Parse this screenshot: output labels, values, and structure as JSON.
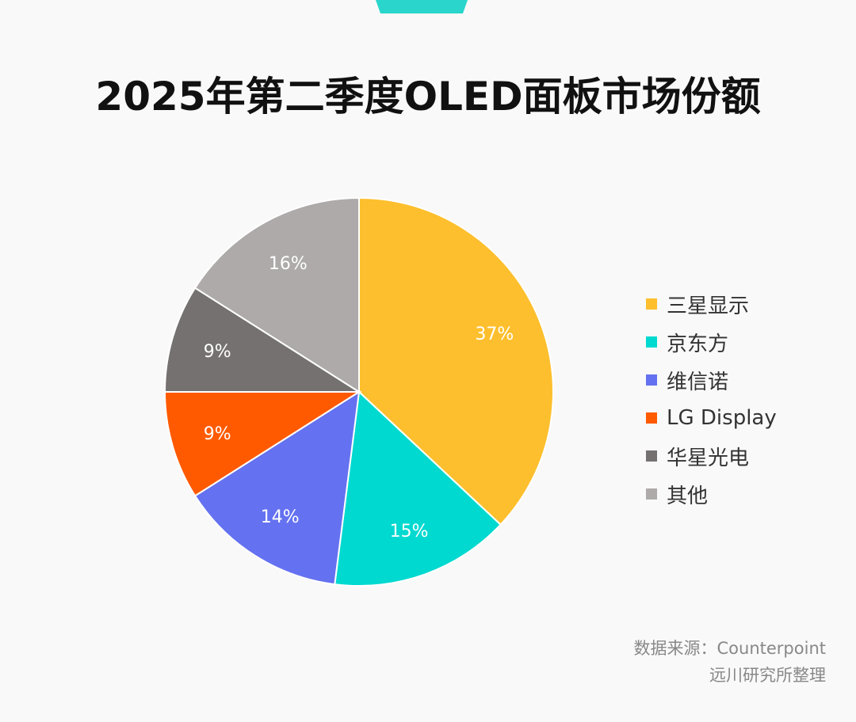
{
  "title": "2025年第二季度OLED面板市场份额",
  "accent_color": "#2ad6cc",
  "chart_data": {
    "type": "pie",
    "title": "2025年第二季度OLED面板市场份额",
    "start": "12 o'clock, clockwise",
    "legend_position": "right",
    "slices": [
      {
        "label": "三星显示",
        "value": 37,
        "display": "37%",
        "color": "#fdbf2d"
      },
      {
        "label": "京东方",
        "value": 15,
        "display": "15%",
        "color": "#00d9d0"
      },
      {
        "label": "维信诺",
        "value": 14,
        "display": "14%",
        "color": "#6471f0"
      },
      {
        "label": "LG Display",
        "value": 9,
        "display": "9%",
        "color": "#ff5a00"
      },
      {
        "label": "华星光电",
        "value": 9,
        "display": "9%",
        "color": "#767171"
      },
      {
        "label": "其他",
        "value": 16,
        "display": "16%",
        "color": "#aeaaaa"
      }
    ]
  },
  "source": {
    "line1": "数据来源：Counterpoint",
    "line2": "远川研究所整理"
  }
}
